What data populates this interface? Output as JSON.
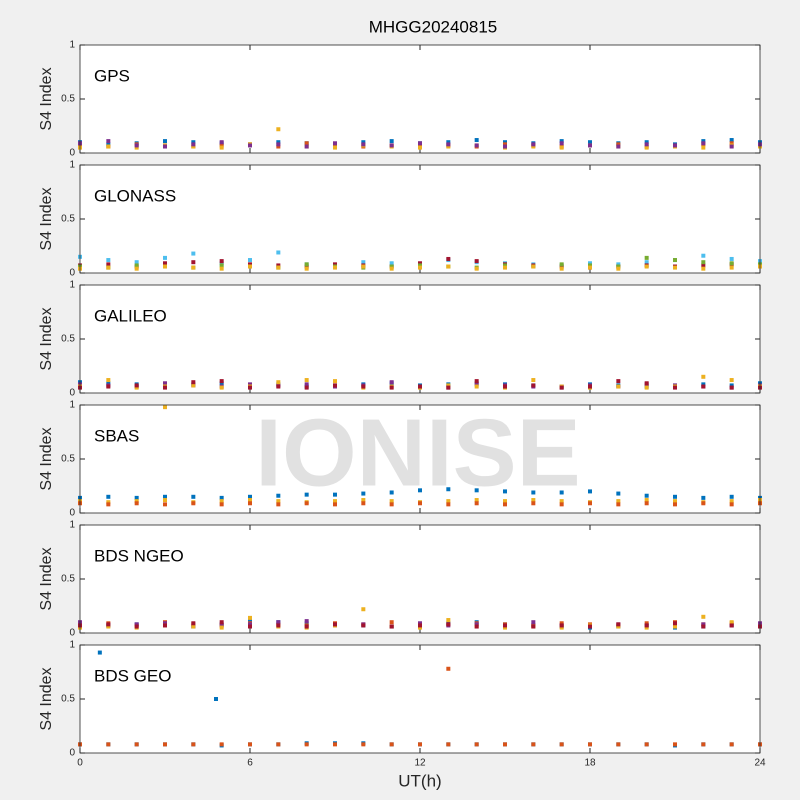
{
  "watermark": "IONISE",
  "chart_data": [
    {
      "type": "scatter",
      "title": "MHGG20240815",
      "label": "GPS",
      "ylabel": "S4 Index",
      "xlim": [
        0,
        24
      ],
      "ylim": [
        0,
        1
      ],
      "yticks": [
        0,
        0.5,
        1
      ],
      "x": [
        0,
        1,
        2,
        3,
        4,
        5,
        6,
        7,
        8,
        9,
        10,
        11,
        12,
        13,
        14,
        15,
        16,
        17,
        18,
        19,
        20,
        21,
        22,
        23,
        24
      ],
      "series": [
        {
          "color": "#0072BD",
          "values": [
            0.1,
            0.08,
            0.09,
            0.11,
            0.1,
            0.09,
            0.08,
            0.1,
            0.09,
            0.08,
            0.1,
            0.11,
            0.09,
            0.1,
            0.12,
            0.1,
            0.09,
            0.11,
            0.1,
            0.09,
            0.1,
            0.08,
            0.11,
            0.12,
            0.1
          ]
        },
        {
          "color": "#D95319",
          "values": [
            0.07,
            0.06,
            0.08,
            0.07,
            0.06,
            0.07,
            0.08,
            0.06,
            0.09,
            0.07,
            0.06,
            0.07,
            0.08,
            0.07,
            0.06,
            0.08,
            0.07,
            0.06,
            0.07,
            0.08,
            0.06,
            0.07,
            0.08,
            0.09,
            0.07
          ]
        },
        {
          "color": "#EDB120",
          "values": [
            0.05,
            0.06,
            0.05,
            0.07,
            0.06,
            0.05,
            0.08,
            0.22,
            0.06,
            0.05,
            0.07,
            0.06,
            0.05,
            0.06,
            0.07,
            0.05,
            0.06,
            0.05,
            0.07,
            0.06,
            0.05,
            0.06,
            0.05,
            0.07,
            0.06
          ]
        },
        {
          "color": "#7E2F8E",
          "values": [
            0.09,
            0.11,
            0.07,
            0.06,
            0.08,
            0.1,
            0.07,
            0.08,
            0.06,
            0.09,
            0.08,
            0.07,
            0.09,
            0.08,
            0.07,
            0.06,
            0.08,
            0.09,
            0.07,
            0.06,
            0.08,
            0.07,
            0.09,
            0.06,
            0.08
          ]
        }
      ]
    },
    {
      "type": "scatter",
      "label": "GLONASS",
      "ylabel": "S4 Index",
      "xlim": [
        0,
        24
      ],
      "ylim": [
        0,
        1
      ],
      "yticks": [
        0,
        0.5,
        1
      ],
      "x": [
        0,
        1,
        2,
        3,
        4,
        5,
        6,
        7,
        8,
        9,
        10,
        11,
        12,
        13,
        14,
        15,
        16,
        17,
        18,
        19,
        20,
        21,
        22,
        23,
        24
      ],
      "series": [
        {
          "color": "#4DBEEE",
          "values": [
            0.15,
            0.12,
            0.1,
            0.14,
            0.18,
            0.09,
            0.12,
            0.19,
            0.08,
            0.07,
            0.1,
            0.09,
            0.08,
            0.12,
            0.1,
            0.09,
            0.08,
            0.07,
            0.09,
            0.08,
            0.1,
            0.12,
            0.16,
            0.13,
            0.11
          ]
        },
        {
          "color": "#A2142F",
          "values": [
            0.07,
            0.08,
            0.06,
            0.09,
            0.1,
            0.11,
            0.08,
            0.07,
            0.06,
            0.08,
            0.07,
            0.06,
            0.09,
            0.13,
            0.11,
            0.08,
            0.07,
            0.06,
            0.05,
            0.06,
            0.07,
            0.06,
            0.07,
            0.08,
            0.06
          ]
        },
        {
          "color": "#77AC30",
          "values": [
            0.06,
            0.05,
            0.07,
            0.06,
            0.05,
            0.07,
            0.06,
            0.05,
            0.08,
            0.06,
            0.05,
            0.06,
            0.07,
            0.06,
            0.05,
            0.07,
            0.06,
            0.08,
            0.07,
            0.06,
            0.14,
            0.12,
            0.1,
            0.09,
            0.08
          ]
        },
        {
          "color": "#EDB120",
          "values": [
            0.04,
            0.05,
            0.04,
            0.06,
            0.05,
            0.04,
            0.06,
            0.05,
            0.04,
            0.05,
            0.06,
            0.04,
            0.05,
            0.06,
            0.04,
            0.05,
            0.06,
            0.04,
            0.05,
            0.04,
            0.06,
            0.05,
            0.04,
            0.05,
            0.06
          ]
        }
      ]
    },
    {
      "type": "scatter",
      "label": "GALILEO",
      "ylabel": "S4 Index",
      "xlim": [
        0,
        24
      ],
      "ylim": [
        0,
        1
      ],
      "yticks": [
        0,
        0.5,
        1
      ],
      "x": [
        0,
        1,
        2,
        3,
        4,
        5,
        6,
        7,
        8,
        9,
        10,
        11,
        12,
        13,
        14,
        15,
        16,
        17,
        18,
        19,
        20,
        21,
        22,
        23,
        24
      ],
      "series": [
        {
          "color": "#0072BD",
          "values": [
            0.1,
            0.09,
            0.08,
            0.07,
            0.08,
            0.09,
            0.07,
            0.08,
            0.06,
            0.07,
            0.08,
            0.09,
            0.07,
            0.08,
            0.09,
            0.08,
            0.07,
            0.06,
            0.08,
            0.07,
            0.06,
            0.07,
            0.08,
            0.07,
            0.09
          ]
        },
        {
          "color": "#7E2F8E",
          "values": [
            0.08,
            0.07,
            0.06,
            0.09,
            0.07,
            0.06,
            0.08,
            0.07,
            0.08,
            0.06,
            0.07,
            0.1,
            0.06,
            0.05,
            0.08,
            0.07,
            0.06,
            0.05,
            0.07,
            0.06,
            0.08,
            0.07,
            0.06,
            0.05,
            0.07
          ]
        },
        {
          "color": "#EDB120",
          "values": [
            0.06,
            0.12,
            0.05,
            0.06,
            0.07,
            0.05,
            0.06,
            0.1,
            0.12,
            0.11,
            0.05,
            0.06,
            0.05,
            0.07,
            0.06,
            0.05,
            0.12,
            0.06,
            0.05,
            0.06,
            0.05,
            0.06,
            0.15,
            0.12,
            0.06
          ]
        },
        {
          "color": "#A2142F",
          "values": [
            0.05,
            0.06,
            0.07,
            0.05,
            0.1,
            0.11,
            0.05,
            0.06,
            0.05,
            0.07,
            0.06,
            0.05,
            0.06,
            0.05,
            0.11,
            0.06,
            0.07,
            0.05,
            0.06,
            0.11,
            0.09,
            0.05,
            0.06,
            0.05,
            0.05
          ]
        }
      ]
    },
    {
      "type": "scatter",
      "label": "SBAS",
      "ylabel": "S4 Index",
      "xlim": [
        0,
        24
      ],
      "ylim": [
        0,
        1
      ],
      "yticks": [
        0,
        0.5,
        1
      ],
      "x": [
        0,
        1,
        2,
        3,
        4,
        5,
        6,
        7,
        8,
        9,
        10,
        11,
        12,
        13,
        14,
        15,
        16,
        17,
        18,
        19,
        20,
        21,
        22,
        23,
        24
      ],
      "series": [
        {
          "color": "#0072BD",
          "values": [
            0.14,
            0.15,
            0.14,
            0.15,
            0.15,
            0.14,
            0.15,
            0.16,
            0.17,
            0.17,
            0.18,
            0.19,
            0.21,
            0.22,
            0.21,
            0.2,
            0.19,
            0.19,
            0.2,
            0.18,
            0.16,
            0.15,
            0.14,
            0.15,
            0.14
          ]
        },
        {
          "color": "#EDB120",
          "values": [
            0.11,
            0.1,
            0.11,
            0.12,
            0.1,
            0.11,
            0.12,
            0.11,
            0.1,
            0.11,
            0.12,
            0.11,
            0.1,
            0.11,
            0.12,
            0.11,
            0.12,
            0.11,
            0.1,
            0.11,
            0.12,
            0.11,
            0.1,
            0.11,
            0.12
          ]
        },
        {
          "color": "#D95319",
          "values": [
            0.09,
            0.08,
            0.09,
            0.08,
            0.09,
            0.08,
            0.09,
            0.08,
            0.09,
            0.08,
            0.09,
            0.08,
            0.09,
            0.08,
            0.09,
            0.08,
            0.09,
            0.08,
            0.09,
            0.08,
            0.09,
            0.08,
            0.09,
            0.08,
            0.09
          ]
        },
        {
          "color": "#EDB120",
          "x": [
            3
          ],
          "values": [
            0.98
          ]
        }
      ]
    },
    {
      "type": "scatter",
      "label": "BDS NGEO",
      "ylabel": "S4 Index",
      "xlim": [
        0,
        24
      ],
      "ylim": [
        0,
        1
      ],
      "yticks": [
        0,
        0.5,
        1
      ],
      "x": [
        0,
        1,
        2,
        3,
        4,
        5,
        6,
        7,
        8,
        9,
        10,
        11,
        12,
        13,
        14,
        15,
        16,
        17,
        18,
        19,
        20,
        21,
        22,
        23,
        24
      ],
      "series": [
        {
          "color": "#0072BD",
          "values": [
            0.06,
            0.07,
            0.08,
            0.07,
            0.06,
            0.08,
            0.12,
            0.1,
            0.09,
            0.08,
            0.07,
            0.06,
            0.08,
            0.09,
            0.1,
            0.08,
            0.07,
            0.06,
            0.05,
            0.06,
            0.07,
            0.05,
            0.06,
            0.07,
            0.06
          ]
        },
        {
          "color": "#D95319",
          "values": [
            0.08,
            0.09,
            0.07,
            0.1,
            0.08,
            0.07,
            0.09,
            0.08,
            0.07,
            0.09,
            0.08,
            0.1,
            0.07,
            0.08,
            0.09,
            0.08,
            0.07,
            0.09,
            0.08,
            0.07,
            0.09,
            0.1,
            0.08,
            0.09,
            0.08
          ]
        },
        {
          "color": "#7E2F8E",
          "values": [
            0.1,
            0.07,
            0.08,
            0.09,
            0.06,
            0.07,
            0.08,
            0.1,
            0.11,
            0.07,
            0.08,
            0.06,
            0.09,
            0.07,
            0.08,
            0.06,
            0.1,
            0.07,
            0.06,
            0.08,
            0.07,
            0.06,
            0.08,
            0.07,
            0.09
          ]
        },
        {
          "color": "#EDB120",
          "values": [
            0.05,
            0.06,
            0.05,
            0.07,
            0.06,
            0.05,
            0.14,
            0.06,
            0.05,
            0.07,
            0.22,
            0.06,
            0.05,
            0.12,
            0.06,
            0.05,
            0.06,
            0.05,
            0.07,
            0.06,
            0.05,
            0.06,
            0.15,
            0.1,
            0.06
          ]
        },
        {
          "color": "#A2142F",
          "values": [
            0.07,
            0.08,
            0.06,
            0.07,
            0.09,
            0.1,
            0.06,
            0.07,
            0.06,
            0.08,
            0.07,
            0.06,
            0.07,
            0.08,
            0.06,
            0.07,
            0.06,
            0.07,
            0.06,
            0.08,
            0.07,
            0.09,
            0.06,
            0.07,
            0.06
          ]
        }
      ]
    },
    {
      "type": "scatter",
      "label": "BDS GEO",
      "ylabel": "S4 Index",
      "xlabel": "UT(h)",
      "xlim": [
        0,
        24
      ],
      "ylim": [
        0,
        1
      ],
      "yticks": [
        0,
        0.5,
        1
      ],
      "xticks": [
        0,
        6,
        12,
        18,
        24
      ],
      "x": [
        0,
        1,
        2,
        3,
        4,
        5,
        6,
        7,
        8,
        9,
        10,
        11,
        12,
        13,
        14,
        15,
        16,
        17,
        18,
        19,
        20,
        21,
        22,
        23,
        24
      ],
      "series": [
        {
          "color": "#0072BD",
          "values": [
            0.08,
            0.08,
            0.08,
            0.08,
            0.08,
            0.07,
            0.08,
            0.08,
            0.09,
            0.09,
            0.09,
            0.08,
            0.08,
            0.08,
            0.08,
            0.08,
            0.08,
            0.08,
            0.08,
            0.08,
            0.08,
            0.07,
            0.08,
            0.08,
            0.08
          ]
        },
        {
          "color": "#D95319",
          "values": [
            0.08,
            0.08,
            0.08,
            0.08,
            0.08,
            0.08,
            0.08,
            0.08,
            0.08,
            0.08,
            0.08,
            0.08,
            0.08,
            0.08,
            0.08,
            0.08,
            0.08,
            0.08,
            0.08,
            0.08,
            0.08,
            0.08,
            0.08,
            0.08,
            0.08
          ]
        },
        {
          "color": "#0072BD",
          "x": [
            0.7,
            4.8
          ],
          "values": [
            0.93,
            0.5
          ]
        },
        {
          "color": "#D95319",
          "x": [
            13
          ],
          "values": [
            0.78
          ]
        }
      ]
    }
  ]
}
